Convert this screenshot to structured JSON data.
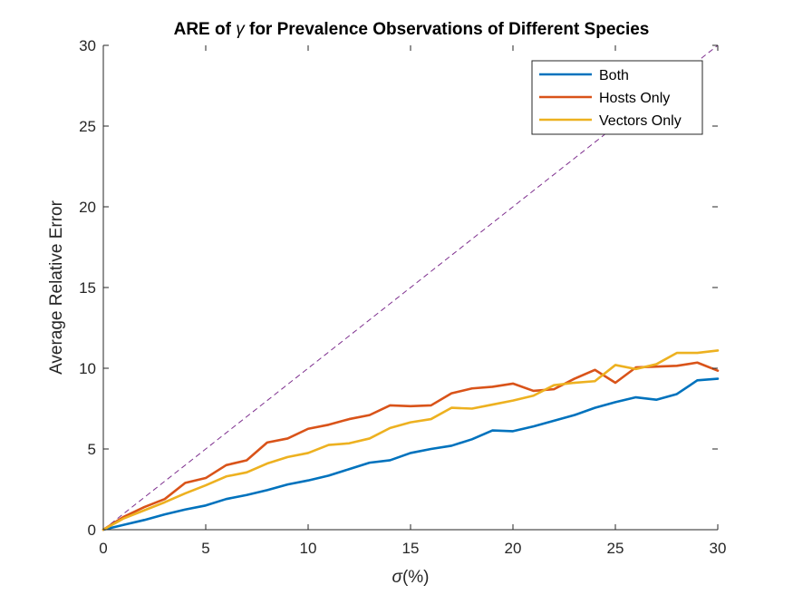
{
  "chart_data": {
    "type": "line",
    "title_prefix": "ARE of ",
    "title_symbol": "γ",
    "title_suffix": " for Prevalence Observations of Different Species",
    "xlabel_symbol": "σ",
    "xlabel_suffix": "(%)",
    "ylabel": "Average Relative Error",
    "xlim": [
      0,
      30
    ],
    "ylim": [
      0,
      30
    ],
    "xticks": [
      0,
      5,
      10,
      15,
      20,
      25,
      30
    ],
    "yticks": [
      0,
      5,
      10,
      15,
      20,
      25,
      30
    ],
    "grid": false,
    "legend_position": "top-right",
    "x": [
      0,
      1,
      2,
      3,
      4,
      5,
      6,
      7,
      8,
      9,
      10,
      11,
      12,
      13,
      14,
      15,
      16,
      17,
      18,
      19,
      20,
      21,
      22,
      23,
      24,
      25,
      26,
      27,
      28,
      29,
      30
    ],
    "series": [
      {
        "name": "Both",
        "color": "#0072BD",
        "values": [
          0,
          0.3,
          0.6,
          0.95,
          1.25,
          1.5,
          1.9,
          2.15,
          2.45,
          2.8,
          3.05,
          3.35,
          3.75,
          4.15,
          4.3,
          4.75,
          5.0,
          5.2,
          5.6,
          6.15,
          6.1,
          6.4,
          6.75,
          7.1,
          7.55,
          7.9,
          8.2,
          8.05,
          8.4,
          9.25,
          9.35
        ]
      },
      {
        "name": "Hosts Only",
        "color": "#D95319",
        "values": [
          0,
          0.8,
          1.4,
          1.9,
          2.9,
          3.2,
          4.0,
          4.3,
          5.4,
          5.65,
          6.25,
          6.5,
          6.85,
          7.1,
          7.7,
          7.65,
          7.7,
          8.45,
          8.75,
          8.85,
          9.05,
          8.6,
          8.7,
          9.35,
          9.9,
          9.1,
          10.05,
          10.1,
          10.15,
          10.35,
          9.85
        ]
      },
      {
        "name": "Vectors Only",
        "color": "#EDB120",
        "values": [
          0,
          0.7,
          1.2,
          1.7,
          2.25,
          2.75,
          3.3,
          3.55,
          4.1,
          4.5,
          4.75,
          5.25,
          5.35,
          5.65,
          6.3,
          6.65,
          6.85,
          7.55,
          7.5,
          7.75,
          8.0,
          8.3,
          8.95,
          9.1,
          9.2,
          10.2,
          9.95,
          10.25,
          10.95,
          10.95,
          11.1
        ]
      }
    ],
    "reference_line": {
      "x": [
        0,
        30
      ],
      "y": [
        0,
        30
      ],
      "color": "#7E2F8E",
      "style": "dashed"
    }
  }
}
